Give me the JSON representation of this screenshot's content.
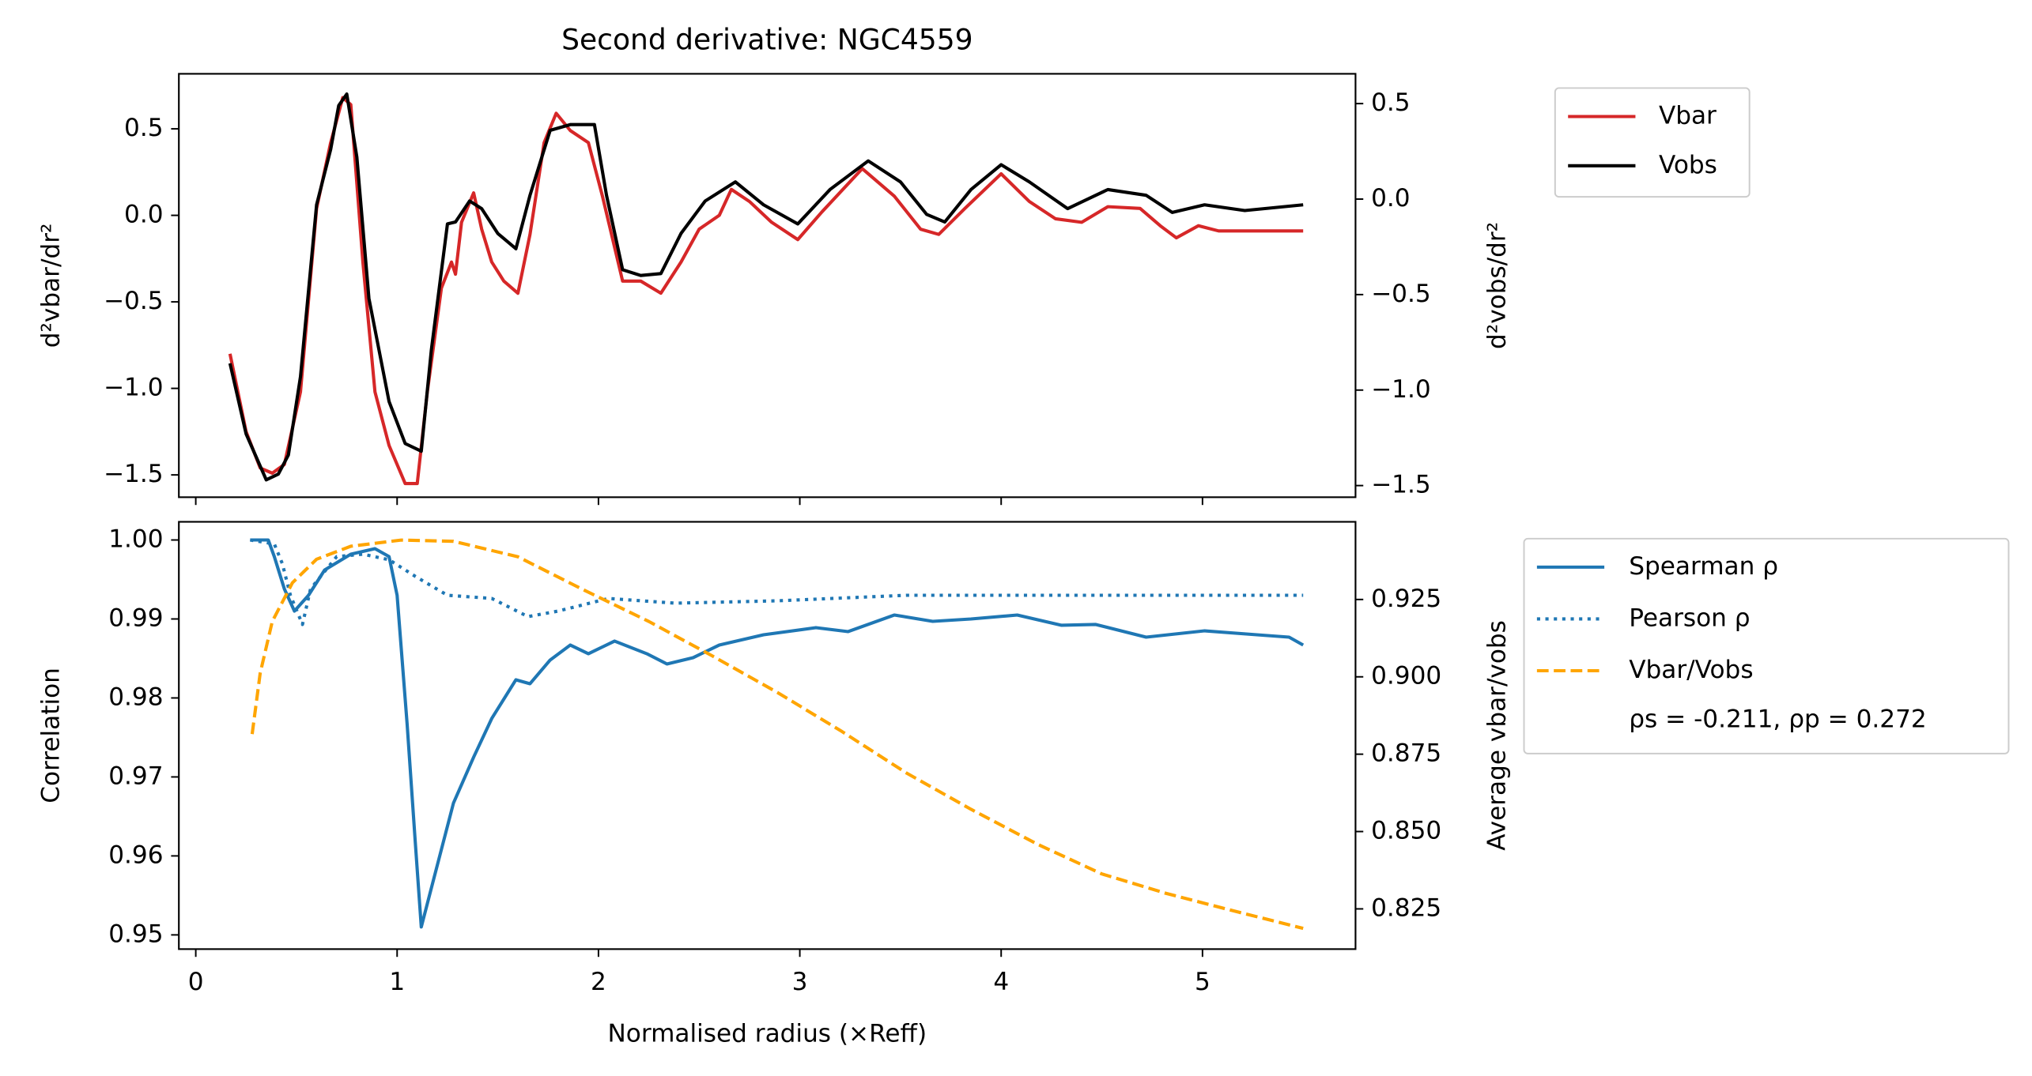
{
  "chart_data": [
    {
      "type": "line",
      "title": "Second derivative: NGC4559",
      "xlim": [
        -0.084,
        5.76
      ],
      "ylabel": "d²vbar/dr²",
      "y2label": "d²vobs/dr²",
      "ycolor": "#d62728",
      "y2color": "#000000",
      "ylim": [
        -1.629,
        0.818
      ],
      "yticks": [
        {
          "value": 0.5,
          "label": "0.5"
        },
        {
          "value": 0,
          "label": "0.0"
        },
        {
          "value": -0.5,
          "label": "−0.5"
        },
        {
          "value": -1,
          "label": "−1.0"
        },
        {
          "value": -1.5,
          "label": "−1.5"
        }
      ],
      "y2lim": [
        -1.561,
        0.656
      ],
      "y2ticks": [
        {
          "value": 0.5,
          "label": "0.5"
        },
        {
          "value": 0,
          "label": "0.0"
        },
        {
          "value": -0.5,
          "label": "−0.5"
        },
        {
          "value": -1,
          "label": "−1.0"
        },
        {
          "value": -1.5,
          "label": "−1.5"
        }
      ],
      "legend": "outside-upper-right",
      "series": [
        {
          "name": "Vbar",
          "color": "#d62728",
          "linestyle": "solid",
          "x": [
            0.17,
            0.25,
            0.32,
            0.38,
            0.44,
            0.52,
            0.6,
            0.67,
            0.73,
            0.77,
            0.83,
            0.89,
            0.96,
            1.04,
            1.1,
            1.15,
            1.22,
            1.27,
            1.29,
            1.32,
            1.38,
            1.42,
            1.47,
            1.53,
            1.6,
            1.66,
            1.73,
            1.79,
            1.86,
            1.95,
            2.02,
            2.12,
            2.21,
            2.31,
            2.41,
            2.5,
            2.6,
            2.66,
            2.75,
            2.86,
            2.99,
            3.11,
            3.31,
            3.47,
            3.6,
            3.69,
            3.82,
            4.0,
            4.14,
            4.27,
            4.4,
            4.53,
            4.69,
            4.79,
            4.87,
            4.98,
            5.08,
            5.21,
            5.5
          ],
          "values": [
            -0.8,
            -1.25,
            -1.46,
            -1.49,
            -1.44,
            -1.02,
            0.04,
            0.42,
            0.68,
            0.64,
            -0.27,
            -1.02,
            -1.33,
            -1.55,
            -1.55,
            -1.02,
            -0.42,
            -0.27,
            -0.34,
            -0.04,
            0.13,
            -0.08,
            -0.27,
            -0.38,
            -0.45,
            -0.11,
            0.42,
            0.59,
            0.49,
            0.42,
            0.11,
            -0.38,
            -0.38,
            -0.45,
            -0.27,
            -0.08,
            0.0,
            0.15,
            0.08,
            -0.04,
            -0.14,
            0.02,
            0.27,
            0.11,
            -0.08,
            -0.11,
            0.04,
            0.24,
            0.08,
            -0.02,
            -0.04,
            0.05,
            0.04,
            -0.06,
            -0.13,
            -0.06,
            -0.09,
            -0.09,
            -0.09
          ]
        },
        {
          "name": "Vobs",
          "color": "#000000",
          "linestyle": "solid",
          "axis": "y2",
          "x": [
            0.17,
            0.25,
            0.35,
            0.41,
            0.46,
            0.52,
            0.6,
            0.67,
            0.71,
            0.75,
            0.8,
            0.86,
            0.96,
            1.04,
            1.12,
            1.17,
            1.25,
            1.29,
            1.36,
            1.42,
            1.5,
            1.59,
            1.66,
            1.76,
            1.86,
            1.98,
            2.04,
            2.12,
            2.21,
            2.31,
            2.41,
            2.53,
            2.68,
            2.82,
            2.99,
            3.15,
            3.34,
            3.5,
            3.63,
            3.72,
            3.85,
            4.0,
            4.14,
            4.33,
            4.53,
            4.72,
            4.85,
            5.01,
            5.21,
            5.5
          ],
          "values": [
            -0.86,
            -1.23,
            -1.47,
            -1.44,
            -1.34,
            -0.93,
            -0.03,
            0.26,
            0.49,
            0.55,
            0.22,
            -0.52,
            -1.06,
            -1.28,
            -1.32,
            -0.79,
            -0.13,
            -0.12,
            -0.01,
            -0.05,
            -0.18,
            -0.26,
            0.02,
            0.36,
            0.39,
            0.39,
            0.02,
            -0.37,
            -0.4,
            -0.39,
            -0.18,
            -0.01,
            0.09,
            -0.03,
            -0.13,
            0.05,
            0.2,
            0.09,
            -0.08,
            -0.12,
            0.05,
            0.18,
            0.09,
            -0.05,
            0.05,
            0.02,
            -0.07,
            -0.03,
            -0.06,
            -0.03
          ]
        }
      ]
    },
    {
      "type": "line",
      "xlabel": "Normalised radius (×Reff)",
      "xlim": [
        -0.084,
        5.76
      ],
      "xticks": [
        0,
        1,
        2,
        3,
        4,
        5
      ],
      "ylabel": "Correlation",
      "y2label": "Average vbar/vobs",
      "ycolor": "#1f77b4",
      "y2color": "#ffa500",
      "ylim": [
        0.9482,
        1.0023
      ],
      "yticks": [
        {
          "value": 1.0,
          "label": "1.00"
        },
        {
          "value": 0.99,
          "label": "0.99"
        },
        {
          "value": 0.98,
          "label": "0.98"
        },
        {
          "value": 0.97,
          "label": "0.97"
        },
        {
          "value": 0.96,
          "label": "0.96"
        },
        {
          "value": 0.95,
          "label": "0.95"
        }
      ],
      "y2lim": [
        0.812,
        0.9501
      ],
      "y2ticks": [
        {
          "value": 0.925,
          "label": "0.925"
        },
        {
          "value": 0.9,
          "label": "0.900"
        },
        {
          "value": 0.875,
          "label": "0.875"
        },
        {
          "value": 0.85,
          "label": "0.850"
        },
        {
          "value": 0.825,
          "label": "0.825"
        }
      ],
      "legend": "outside-upper-right",
      "annotation": "ρs = -0.211, ρp = 0.272",
      "series": [
        {
          "name": "Spearman ρ",
          "color": "#1f77b4",
          "linestyle": "solid",
          "x": [
            0.27,
            0.36,
            0.39,
            0.44,
            0.49,
            0.56,
            0.64,
            0.77,
            0.89,
            0.96,
            1.0,
            1.05,
            1.09,
            1.12,
            1.18,
            1.28,
            1.38,
            1.47,
            1.59,
            1.66,
            1.76,
            1.86,
            1.95,
            2.08,
            2.24,
            2.34,
            2.47,
            2.6,
            2.82,
            3.08,
            3.24,
            3.47,
            3.66,
            3.85,
            4.08,
            4.3,
            4.47,
            4.72,
            5.01,
            5.27,
            5.43,
            5.5
          ],
          "values": [
            1.0,
            1.0,
            0.9979,
            0.9938,
            0.991,
            0.993,
            0.9962,
            0.9982,
            0.9989,
            0.9979,
            0.993,
            0.9766,
            0.9618,
            0.951,
            0.9569,
            0.9667,
            0.9725,
            0.9774,
            0.9823,
            0.9818,
            0.9848,
            0.9867,
            0.9856,
            0.9872,
            0.9856,
            0.9843,
            0.9851,
            0.9867,
            0.988,
            0.9889,
            0.9884,
            0.9905,
            0.9897,
            0.99,
            0.9905,
            0.9892,
            0.9893,
            0.9877,
            0.9885,
            0.988,
            0.9877,
            0.9867
          ]
        },
        {
          "name": "Pearson ρ",
          "color": "#1f77b4",
          "linestyle": "dotted",
          "x": [
            0.27,
            0.39,
            0.43,
            0.47,
            0.53,
            0.57,
            0.7,
            0.83,
            0.96,
            1.09,
            1.25,
            1.47,
            1.65,
            1.8,
            2.05,
            2.38,
            2.89,
            3.53,
            5.5
          ],
          "values": [
            1.0,
            0.9995,
            0.997,
            0.993,
            0.9893,
            0.9938,
            0.9979,
            0.9982,
            0.9975,
            0.9954,
            0.993,
            0.9926,
            0.9903,
            0.991,
            0.9926,
            0.992,
            0.9923,
            0.993,
            0.993
          ]
        },
        {
          "name": "Vbar/Vobs",
          "color": "#ffa500",
          "linestyle": "dashed",
          "axis": "y2",
          "x": [
            0.28,
            0.32,
            0.38,
            0.48,
            0.6,
            0.77,
            1.02,
            1.28,
            1.6,
            1.92,
            2.25,
            2.57,
            2.89,
            3.21,
            3.53,
            3.85,
            4.18,
            4.5,
            4.82,
            5.14,
            5.5
          ],
          "values": [
            0.8815,
            0.9012,
            0.9179,
            0.9304,
            0.938,
            0.9422,
            0.9442,
            0.9438,
            0.9388,
            0.9283,
            0.9179,
            0.9066,
            0.8949,
            0.8823,
            0.8689,
            0.8572,
            0.8459,
            0.8363,
            0.83,
            0.8246,
            0.8187
          ]
        }
      ]
    }
  ]
}
